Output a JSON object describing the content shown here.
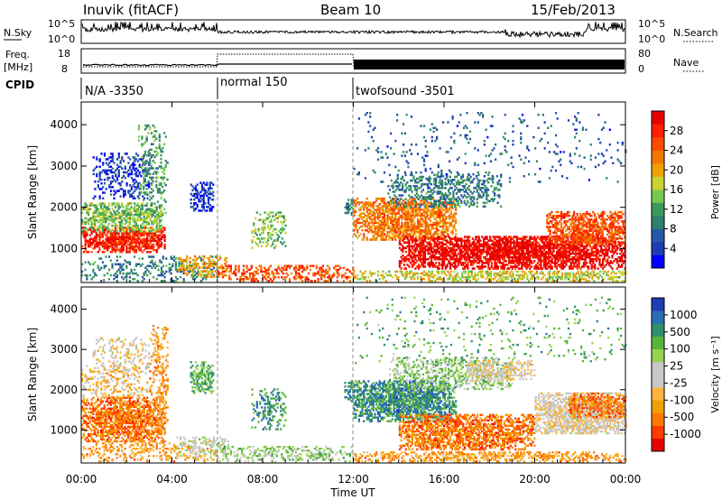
{
  "header": {
    "station": "Inuvik (fitACF)",
    "beam": "Beam 10",
    "date": "15/Feb/2013"
  },
  "nsky_panel": {
    "left_label": "N.Sky",
    "left_ticks": [
      "10^5",
      "10^0"
    ],
    "right_ticks": [
      "10^5",
      "10^0"
    ],
    "right_label": "N.Search"
  },
  "freq_panel": {
    "left_label_1": "Freq.",
    "left_label_2": "[MHz]",
    "left_ticks": [
      "18",
      "8"
    ],
    "right_ticks": [
      "80",
      "0"
    ],
    "right_label": "Nave"
  },
  "cpid": {
    "label": "CPID",
    "segments": [
      {
        "label": "N/A -3350",
        "start": "00:00",
        "end": "06:00"
      },
      {
        "label": "normal 150",
        "start": "06:00",
        "end": "12:00"
      },
      {
        "label": "twofsound -3501",
        "start": "12:00",
        "end": "24:00"
      }
    ]
  },
  "chart_data": [
    {
      "type": "heatmap",
      "name": "power",
      "ylabel": "Slant Range [km]",
      "xlabel": "Time UT",
      "x_ticks": [
        "00:00",
        "04:00",
        "08:00",
        "12:00",
        "16:00",
        "20:00",
        "00:00"
      ],
      "x_range_hours": [
        0,
        24
      ],
      "y_ticks": [
        1000,
        2000,
        3000,
        4000
      ],
      "ylim": [
        180,
        4550
      ],
      "colorbar": {
        "label": "Power [dB]",
        "ticks": [
          "28",
          "24",
          "20",
          "16",
          "12",
          "8",
          "4"
        ],
        "colors": [
          "#0000ff",
          "#1e3cb4",
          "#2858a8",
          "#2f7f6e",
          "#3c9a5a",
          "#78c850",
          "#c8d232",
          "#f0a000",
          "#f07800",
          "#ff4a00",
          "#ff1e00",
          "#e60000"
        ]
      },
      "blobs": [
        {
          "t0": 0.0,
          "t1": 3.7,
          "r0": 900,
          "r1": 1500,
          "level": 10,
          "density": 0.85
        },
        {
          "t0": 0.0,
          "t1": 3.5,
          "r0": 1400,
          "r1": 2100,
          "level": 5,
          "density": 0.7
        },
        {
          "t0": 0.5,
          "t1": 3.0,
          "r0": 2200,
          "r1": 3300,
          "level": 1,
          "density": 0.35
        },
        {
          "t0": 2.5,
          "t1": 3.8,
          "r0": 1800,
          "r1": 4000,
          "level": 4,
          "density": 0.3
        },
        {
          "t0": 0.0,
          "t1": 6.0,
          "r0": 200,
          "r1": 800,
          "level": 3,
          "density": 0.3
        },
        {
          "t0": 4.8,
          "t1": 5.8,
          "r0": 1900,
          "r1": 2600,
          "level": 1,
          "density": 0.6
        },
        {
          "t0": 4.2,
          "t1": 6.5,
          "r0": 300,
          "r1": 800,
          "level": 7,
          "density": 0.5
        },
        {
          "t0": 6.0,
          "t1": 12.0,
          "r0": 200,
          "r1": 600,
          "level": 9,
          "density": 0.45
        },
        {
          "t0": 7.5,
          "t1": 9.0,
          "r0": 1000,
          "r1": 1900,
          "level": 5,
          "density": 0.35
        },
        {
          "t0": 11.6,
          "t1": 12.0,
          "r0": 1800,
          "r1": 2200,
          "level": 3,
          "density": 0.6
        },
        {
          "t0": 12.0,
          "t1": 16.5,
          "r0": 1200,
          "r1": 2200,
          "level": 8,
          "density": 0.8
        },
        {
          "t0": 14.0,
          "t1": 24.0,
          "r0": 500,
          "r1": 1300,
          "level": 11,
          "density": 0.85
        },
        {
          "t0": 13.5,
          "t1": 18.5,
          "r0": 2000,
          "r1": 2800,
          "level": 3,
          "density": 0.45
        },
        {
          "t0": 20.5,
          "t1": 24.0,
          "r0": 1100,
          "r1": 1900,
          "level": 9,
          "density": 0.75
        },
        {
          "t0": 12.0,
          "t1": 24.0,
          "r0": 2600,
          "r1": 4300,
          "level": 2,
          "density": 0.06
        },
        {
          "t0": 12.0,
          "t1": 24.0,
          "r0": 200,
          "r1": 450,
          "level": 6,
          "density": 0.6
        }
      ]
    },
    {
      "type": "heatmap",
      "name": "velocity",
      "ylabel": "Slant Range [km]",
      "xlabel": "Time UT",
      "x_ticks": [
        "00:00",
        "04:00",
        "08:00",
        "12:00",
        "16:00",
        "20:00",
        "00:00"
      ],
      "x_range_hours": [
        0,
        24
      ],
      "y_ticks": [
        1000,
        2000,
        3000,
        4000
      ],
      "ylim": [
        180,
        4550
      ],
      "colorbar": {
        "label": "Velocity [m s⁻¹]",
        "ticks": [
          "1000",
          "500",
          "100",
          "25",
          "-25",
          "-100",
          "-500",
          "-1000"
        ],
        "colors": [
          "#e60000",
          "#ff3c00",
          "#ff7800",
          "#f0a000",
          "#ffb43c",
          "#c8c8c8",
          "#c8c8c8",
          "#96d250",
          "#5ab43c",
          "#2f8f6e",
          "#286eb4",
          "#1e3cb4"
        ]
      },
      "blobs": [
        {
          "t0": 0.0,
          "t1": 3.7,
          "r0": 700,
          "r1": 1800,
          "level": 2,
          "density": 0.8
        },
        {
          "t0": 0.0,
          "t1": 3.0,
          "r0": 1800,
          "r1": 2600,
          "level": 4,
          "density": 0.35
        },
        {
          "t0": 0.5,
          "t1": 3.0,
          "r0": 2500,
          "r1": 3300,
          "level": 5,
          "density": 0.3
        },
        {
          "t0": 3.0,
          "t1": 3.8,
          "r0": 1000,
          "r1": 3600,
          "level": 3,
          "density": 0.4
        },
        {
          "t0": 0.0,
          "t1": 6.0,
          "r0": 200,
          "r1": 700,
          "level": 3,
          "density": 0.3
        },
        {
          "t0": 4.8,
          "t1": 5.8,
          "r0": 1900,
          "r1": 2700,
          "level": 8,
          "density": 0.6
        },
        {
          "t0": 4.2,
          "t1": 6.5,
          "r0": 300,
          "r1": 800,
          "level": 6,
          "density": 0.45
        },
        {
          "t0": 6.0,
          "t1": 12.0,
          "r0": 200,
          "r1": 600,
          "level": 7,
          "density": 0.35
        },
        {
          "t0": 7.5,
          "t1": 9.0,
          "r0": 1000,
          "r1": 2000,
          "level": 9,
          "density": 0.35
        },
        {
          "t0": 11.6,
          "t1": 12.0,
          "r0": 1700,
          "r1": 2200,
          "level": 9,
          "density": 0.6
        },
        {
          "t0": 12.0,
          "t1": 16.5,
          "r0": 1200,
          "r1": 2200,
          "level": 9,
          "density": 0.85
        },
        {
          "t0": 14.0,
          "t1": 20.0,
          "r0": 500,
          "r1": 1400,
          "level": 2,
          "density": 0.75
        },
        {
          "t0": 13.5,
          "t1": 19.0,
          "r0": 2000,
          "r1": 2800,
          "level": 7,
          "density": 0.45
        },
        {
          "t0": 17.0,
          "t1": 20.0,
          "r0": 2200,
          "r1": 2700,
          "level": 5,
          "density": 0.55
        },
        {
          "t0": 20.0,
          "t1": 24.0,
          "r0": 900,
          "r1": 1900,
          "level": 5,
          "density": 0.8
        },
        {
          "t0": 21.5,
          "t1": 24.0,
          "r0": 1300,
          "r1": 1900,
          "level": 2,
          "density": 0.55
        },
        {
          "t0": 12.0,
          "t1": 24.0,
          "r0": 2600,
          "r1": 4300,
          "level": 8,
          "density": 0.06
        },
        {
          "t0": 12.0,
          "t1": 24.0,
          "r0": 200,
          "r1": 450,
          "level": 3,
          "density": 0.55
        }
      ]
    }
  ]
}
